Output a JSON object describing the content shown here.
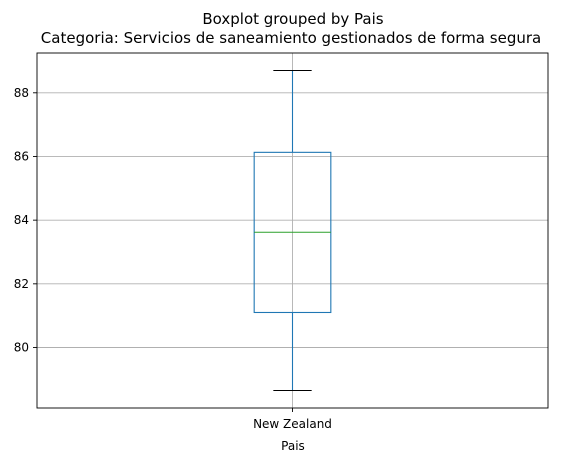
{
  "chart_data": {
    "type": "boxplot",
    "suptitle": "Boxplot grouped by Pais",
    "title": "Categoria: Servicios de saneamiento gestionados de forma segura",
    "xlabel": "Pais",
    "ylabel": "",
    "categories": [
      "New Zealand"
    ],
    "boxes": [
      {
        "category": "New Zealand",
        "whisker_low": 78.65,
        "q1": 81.1,
        "median": 83.62,
        "q3": 86.13,
        "whisker_high": 88.7
      }
    ],
    "ylim": [
      78.1,
      89.25
    ],
    "yticks": [
      "80",
      "82",
      "84",
      "86",
      "88"
    ],
    "ytick_values": [
      80,
      82,
      84,
      86,
      88
    ],
    "grid": true,
    "colors": {
      "box": "#1f77b4",
      "median": "#2ca02c",
      "whisker": "#1f77b4",
      "cap": "#000000",
      "grid": "#b0b0b0",
      "axes": "#000000"
    }
  }
}
